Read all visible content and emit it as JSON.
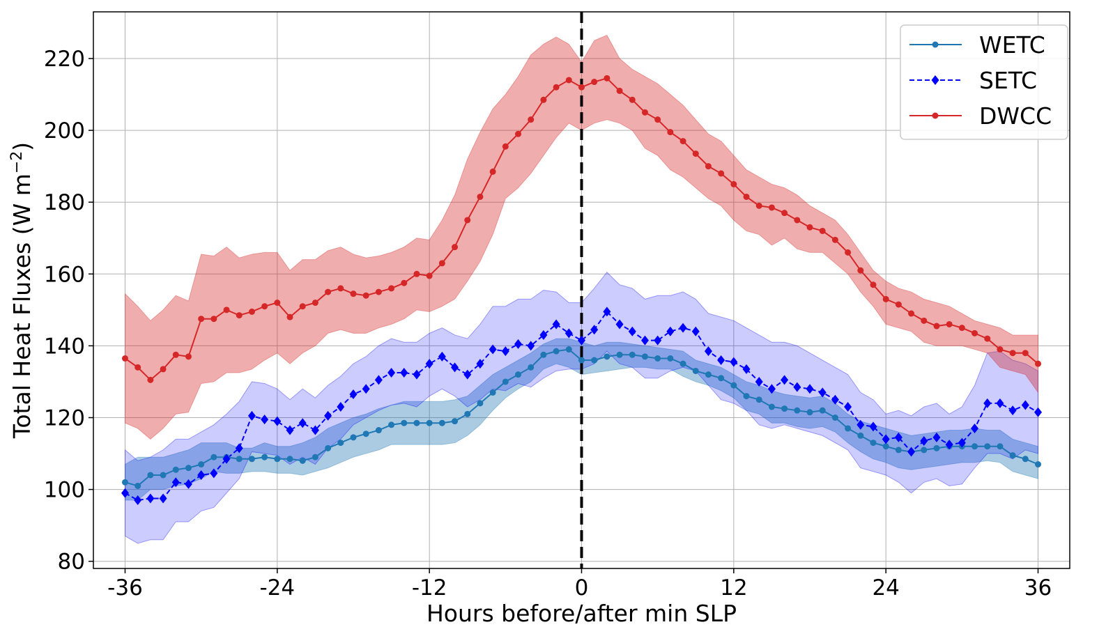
{
  "chart_data": {
    "type": "line",
    "xlabel": "Hours before/after min SLP",
    "ylabel_prefix": "Total Heat Fluxes (W m",
    "ylabel_sup": "−2",
    "ylabel_suffix": ")",
    "xlim": [
      -38.5,
      38.5
    ],
    "ylim": [
      78,
      233
    ],
    "xticks": [
      -36,
      -24,
      -12,
      0,
      12,
      24,
      36
    ],
    "xtick_labels": [
      "-36",
      "-24",
      "-12",
      "0",
      "12",
      "24",
      "36"
    ],
    "yticks": [
      80,
      100,
      120,
      140,
      160,
      180,
      200,
      220
    ],
    "ytick_labels": [
      "80",
      "100",
      "120",
      "140",
      "160",
      "180",
      "200",
      "220"
    ],
    "grid": true,
    "legend_position": "top-right",
    "vline": {
      "x": 0,
      "style": "dashed",
      "color": "#000000"
    },
    "x": [
      -36,
      -35,
      -34,
      -33,
      -32,
      -31,
      -30,
      -29,
      -28,
      -27,
      -26,
      -25,
      -24,
      -23,
      -22,
      -21,
      -20,
      -19,
      -18,
      -17,
      -16,
      -15,
      -14,
      -13,
      -12,
      -11,
      -10,
      -9,
      -8,
      -7,
      -6,
      -5,
      -4,
      -3,
      -2,
      -1,
      0,
      1,
      2,
      3,
      4,
      5,
      6,
      7,
      8,
      9,
      10,
      11,
      12,
      13,
      14,
      15,
      16,
      17,
      18,
      19,
      20,
      21,
      22,
      23,
      24,
      25,
      26,
      27,
      28,
      29,
      30,
      31,
      32,
      33,
      34,
      35,
      36
    ],
    "series": [
      {
        "name": "WETC",
        "color": "#1f77b4",
        "linestyle": "solid",
        "marker": "circle",
        "values": [
          102,
          101,
          104,
          104,
          105.5,
          106,
          107,
          109,
          109,
          108.5,
          108.5,
          109,
          108.5,
          108.5,
          108,
          109,
          111.5,
          113,
          114.5,
          115.5,
          116.5,
          118,
          118.5,
          118.5,
          118.5,
          118.5,
          119,
          121,
          124,
          127,
          130,
          132,
          134,
          137.5,
          138.5,
          139,
          136,
          136,
          137,
          137.5,
          137.5,
          137,
          136.5,
          136.5,
          135,
          133,
          132,
          131,
          129,
          126,
          125,
          123,
          122.5,
          122,
          121.5,
          122,
          120,
          117,
          115,
          113,
          112,
          111,
          110.5,
          111,
          111.5,
          112,
          112,
          112,
          112,
          112,
          109.5,
          108.5,
          107
        ],
        "upper": [
          107,
          109,
          109,
          109,
          110,
          111,
          113,
          113,
          113,
          111.5,
          111.5,
          113,
          112,
          112,
          113,
          114.5,
          117,
          118.5,
          120,
          121,
          122.5,
          123.5,
          124.5,
          124.5,
          124.5,
          124.5,
          125,
          126,
          129,
          132,
          134,
          136,
          138,
          140.5,
          142,
          142,
          141,
          140,
          141,
          141,
          140.5,
          140,
          139.5,
          139,
          138.5,
          136,
          135,
          134,
          132,
          130,
          129,
          127.5,
          126.5,
          126,
          125.5,
          126,
          124,
          121,
          119,
          118,
          117,
          116,
          115,
          115.5,
          116,
          116.5,
          116.5,
          117,
          116.5,
          116.5,
          114,
          113,
          112
        ],
        "lower": [
          97,
          97,
          100,
          100,
          101,
          101.5,
          103,
          105,
          104.5,
          104.5,
          105,
          105,
          104.5,
          104.5,
          104,
          105,
          106,
          107.5,
          109,
          110,
          111,
          112.5,
          112.5,
          112.5,
          112.5,
          112.5,
          113,
          115,
          118,
          122,
          125.5,
          128,
          130,
          133.5,
          135,
          134,
          132,
          132.5,
          133,
          133.5,
          134,
          134,
          133.5,
          133.5,
          131.5,
          130,
          129,
          127.5,
          125.5,
          122,
          121,
          118.5,
          118.5,
          117.5,
          117,
          117.5,
          116,
          113,
          110.5,
          108.5,
          107.5,
          106,
          105.5,
          106,
          106.5,
          107,
          107.5,
          107.5,
          108,
          107.5,
          105,
          104,
          103
        ]
      },
      {
        "name": "SETC",
        "color": "#0000ff",
        "linestyle": "dashed",
        "marker": "diamond",
        "values": [
          99,
          97,
          97.5,
          97.5,
          102,
          101.5,
          104,
          104.5,
          108.5,
          111.5,
          120.5,
          119.5,
          119,
          116.5,
          118.5,
          116.5,
          120.5,
          123,
          126.5,
          128,
          130.5,
          132.5,
          132.5,
          132,
          135,
          137,
          134,
          132,
          135,
          139,
          138.5,
          140.5,
          140,
          143,
          146,
          143.5,
          141.5,
          144.5,
          149.5,
          146,
          144,
          141.5,
          141.5,
          144,
          145,
          144,
          138.5,
          136,
          135.5,
          133.5,
          130,
          128,
          130.5,
          128.5,
          128,
          127,
          125,
          123,
          118,
          117.5,
          114,
          114.5,
          110.5,
          113.5,
          114.5,
          112.5,
          113,
          117,
          124,
          124,
          122,
          123.5,
          121.5
        ],
        "upper": [
          111,
          108,
          109,
          111,
          114,
          114,
          116,
          118,
          121,
          124.5,
          130,
          129.5,
          128,
          125,
          128,
          125.5,
          129,
          131.5,
          135,
          137,
          140,
          142,
          141,
          141,
          143.5,
          145,
          143,
          142,
          146,
          151,
          151,
          153,
          153,
          155.5,
          155,
          152,
          152,
          156,
          160.5,
          157,
          156,
          153,
          154,
          154,
          155,
          153,
          149,
          148,
          147,
          145,
          143,
          141,
          141,
          140,
          138,
          136,
          134,
          132,
          127,
          125,
          121,
          122,
          120.5,
          123,
          124,
          121,
          123,
          129,
          138,
          138.5,
          136,
          135,
          133
        ],
        "lower": [
          87,
          85,
          86,
          86,
          91,
          91,
          94,
          95,
          99,
          103,
          110.5,
          110,
          109.5,
          107,
          109,
          107,
          111.5,
          114,
          118,
          120,
          122,
          123.5,
          124,
          123,
          126,
          128,
          126,
          123,
          125,
          128,
          127.5,
          129.5,
          128.5,
          131,
          133,
          133.5,
          133.5,
          135,
          138.5,
          135,
          134,
          131,
          131,
          133,
          134,
          133,
          129,
          125,
          124,
          122,
          118,
          117,
          118,
          117,
          116,
          115,
          113,
          111,
          106,
          105,
          104,
          102,
          99,
          102,
          103,
          101,
          101.5,
          106,
          110,
          110,
          108.5,
          111,
          110
        ]
      },
      {
        "name": "DWCC",
        "color": "#d62728",
        "linestyle": "solid",
        "marker": "circle",
        "values": [
          136.5,
          134,
          130.5,
          133.5,
          137.5,
          137,
          147.5,
          147.5,
          150,
          148.5,
          149.5,
          151,
          152,
          148,
          151,
          152,
          155,
          156,
          154.5,
          154,
          155,
          156,
          157.5,
          160,
          159.5,
          163,
          167.5,
          175,
          181.5,
          188.5,
          195.5,
          199,
          203,
          208.5,
          212,
          214,
          212,
          213.5,
          214.5,
          211,
          208.5,
          205,
          203,
          199.5,
          197,
          193.5,
          190,
          188,
          185,
          181.5,
          179,
          178.5,
          177,
          175,
          173,
          172,
          169.5,
          166,
          161,
          157,
          153,
          151.5,
          149,
          147,
          145.5,
          146,
          145,
          143.5,
          142,
          139,
          138,
          138,
          135
        ],
        "upper": [
          154.5,
          151,
          147,
          150,
          154,
          152.5,
          165.5,
          165,
          167.5,
          164.5,
          165.5,
          166,
          166,
          161,
          164,
          164,
          166.5,
          167.5,
          165.5,
          164.5,
          165,
          166,
          167.5,
          170,
          169.5,
          175,
          182,
          192,
          199.5,
          206,
          210,
          215,
          221,
          224,
          226,
          224,
          219,
          225,
          226.5,
          220,
          217,
          215,
          213,
          210,
          207,
          203,
          199,
          197,
          193,
          189,
          187,
          185,
          184,
          182,
          179,
          177,
          175,
          171,
          166,
          161,
          158,
          156,
          155,
          153,
          152,
          151,
          149,
          147,
          146,
          145,
          143,
          143,
          143
        ],
        "lower": [
          118.5,
          117,
          114,
          117,
          121,
          121.5,
          129.5,
          130,
          132.5,
          132.5,
          133.5,
          136,
          138,
          135,
          138,
          140,
          143.5,
          144.5,
          143.5,
          143.5,
          145,
          146,
          147.5,
          150,
          149.5,
          151,
          153,
          158,
          163.5,
          171,
          181,
          184,
          188,
          193,
          198,
          202,
          200,
          202,
          203,
          202,
          200,
          195,
          193,
          189,
          187,
          184,
          181,
          179,
          175,
          172,
          171,
          168,
          170,
          167,
          166,
          166,
          163,
          160,
          155,
          151,
          146,
          145,
          144,
          141,
          140,
          140,
          140,
          139,
          138,
          134,
          133,
          132,
          127
        ]
      }
    ]
  }
}
